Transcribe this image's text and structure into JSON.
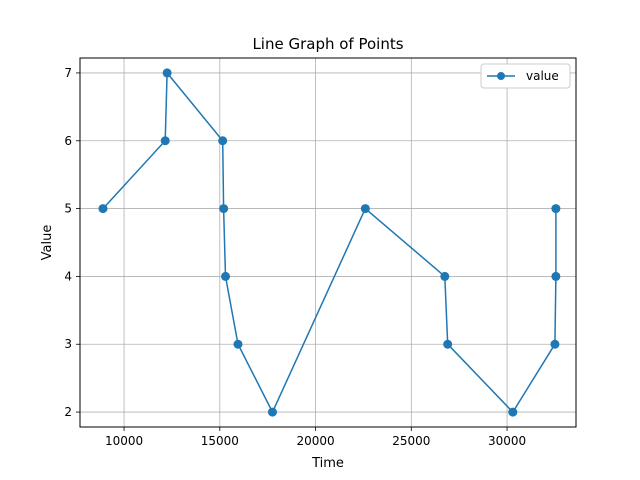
{
  "chart_data": {
    "type": "line",
    "title": "Line Graph of Points",
    "xlabel": "Time",
    "ylabel": "Value",
    "xlim": [
      7700,
      33600
    ],
    "ylim": [
      1.78,
      7.22
    ],
    "xticks": [
      10000,
      15000,
      20000,
      25000,
      30000
    ],
    "yticks": [
      2,
      3,
      4,
      5,
      6,
      7
    ],
    "grid": true,
    "legend": "top-right",
    "series": [
      {
        "name": "value",
        "color": "#1f77b4",
        "marker": "circle",
        "x": [
          8900,
          12150,
          12250,
          15150,
          15200,
          15300,
          15950,
          17750,
          22600,
          26750,
          26900,
          30300,
          32500,
          32550,
          32550
        ],
        "y": [
          5,
          6,
          7,
          6,
          5,
          4,
          3,
          2,
          5,
          4,
          3,
          2,
          3,
          4,
          5
        ]
      }
    ]
  }
}
